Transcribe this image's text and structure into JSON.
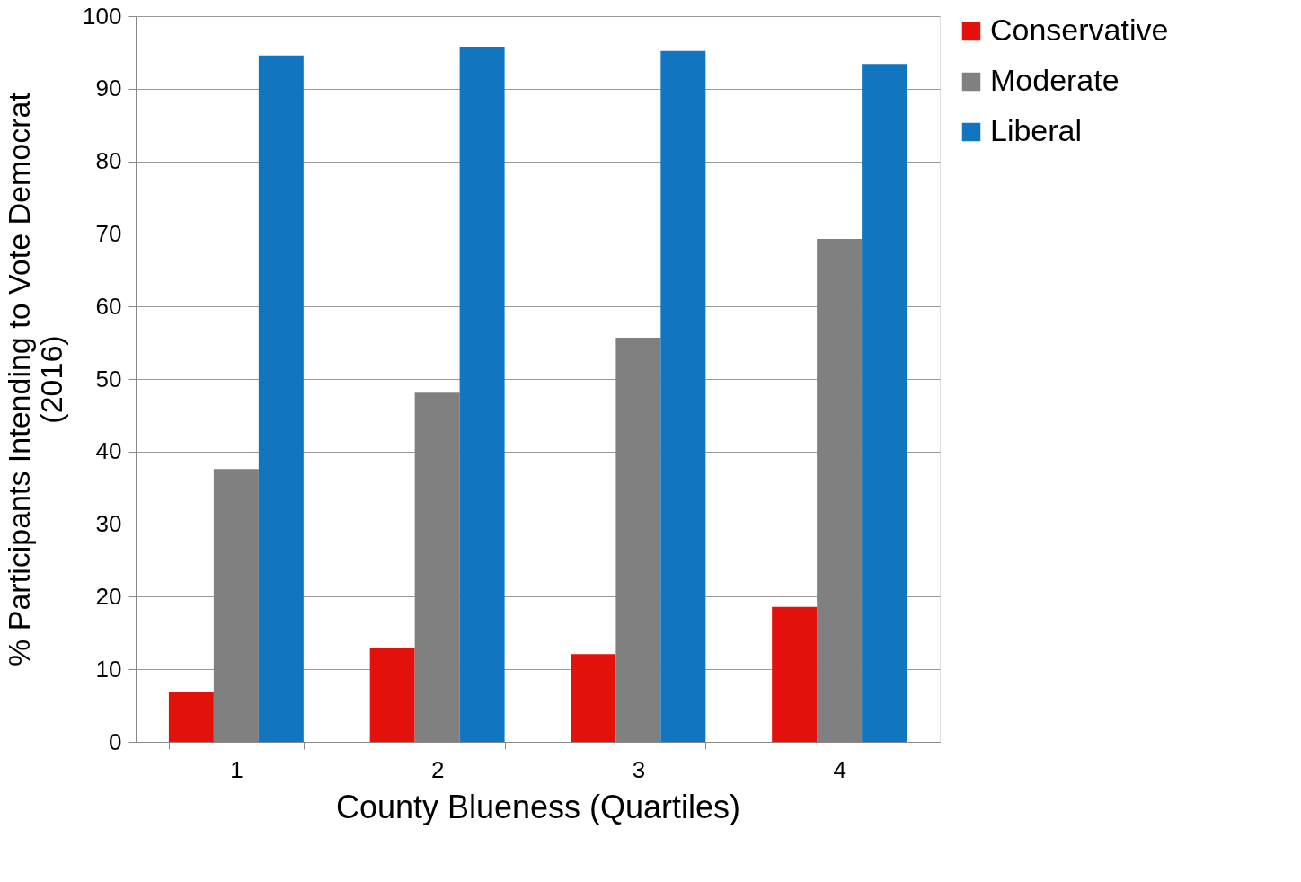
{
  "chart_data": {
    "type": "bar",
    "xlabel": "County Blueness (Quartiles)",
    "ylabel": "% Participants Intending to Vote Democrat\n(2016)",
    "categories": [
      "1",
      "2",
      "3",
      "4"
    ],
    "series": [
      {
        "name": "Conservative",
        "color": "#e2110c",
        "values": [
          6.8,
          12.9,
          12.1,
          18.6
        ]
      },
      {
        "name": "Moderate",
        "color": "#808080",
        "values": [
          37.6,
          48.1,
          55.7,
          69.3
        ]
      },
      {
        "name": "Liberal",
        "color": "#1175c0",
        "values": [
          94.6,
          95.8,
          95.2,
          93.4
        ]
      }
    ],
    "ylim": [
      0,
      100
    ],
    "yticks": [
      0,
      10,
      20,
      30,
      40,
      50,
      60,
      70,
      80,
      90,
      100
    ],
    "grid": "y",
    "legend": "right"
  }
}
